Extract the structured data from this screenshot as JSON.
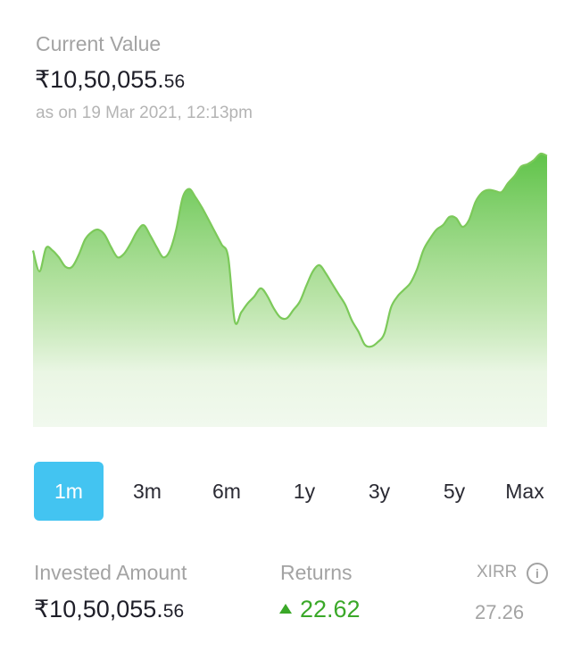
{
  "current_value": {
    "label": "Current Value",
    "amount_main": "₹10,50,055.",
    "amount_decimal": "56",
    "as_on": "as on 19 Mar 2021, 12:13pm"
  },
  "chart_data": {
    "type": "area",
    "title": "",
    "xlabel": "",
    "ylabel": "",
    "grid": false,
    "legend": "none",
    "line_color": "#7cc95a",
    "fill_top_color": "#5cc245",
    "fill_bottom_color": "#eef8ea",
    "ylim": [
      0,
      100
    ],
    "values": [
      62.5,
      55.1,
      63.4,
      62.5,
      60.0,
      56.7,
      56.7,
      60.8,
      66.4,
      69.0,
      69.9,
      68.1,
      63.7,
      60.1,
      61.4,
      65.0,
      69.3,
      71.5,
      67.9,
      63.7,
      60.1,
      62.3,
      69.9,
      81.3,
      84.3,
      81.3,
      77.6,
      73.3,
      68.9,
      64.6,
      60.1,
      37.5,
      40.6,
      43.8,
      46.2,
      49.1,
      46.4,
      42.0,
      38.8,
      38.5,
      41.4,
      44.4,
      50.0,
      55.1,
      57.3,
      54.4,
      50.6,
      46.9,
      43.2,
      37.7,
      33.8,
      29.1,
      28.5,
      30.1,
      33.1,
      42.2,
      46.2,
      48.6,
      51.0,
      55.8,
      62.7,
      66.7,
      69.9,
      71.5,
      74.4,
      74.0,
      70.9,
      73.3,
      79.7,
      83.0,
      84.0,
      83.6,
      83.2,
      86.4,
      88.9,
      92.2,
      93.1,
      94.6,
      96.8,
      96.0
    ]
  },
  "tabs": [
    {
      "label": "1m",
      "active": true
    },
    {
      "label": "3m",
      "active": false
    },
    {
      "label": "6m",
      "active": false
    },
    {
      "label": "1y",
      "active": false
    },
    {
      "label": "3y",
      "active": false
    },
    {
      "label": "5y",
      "active": false
    },
    {
      "label": "Max",
      "active": false
    }
  ],
  "invested": {
    "label": "Invested Amount",
    "amount_main": "₹10,50,055.",
    "amount_decimal": "56"
  },
  "returns": {
    "label": "Returns",
    "value": "22.62",
    "direction_icon": "triangle-up-icon"
  },
  "xirr": {
    "label": "XIRR",
    "value": "27.26",
    "info_icon": "info-icon"
  }
}
